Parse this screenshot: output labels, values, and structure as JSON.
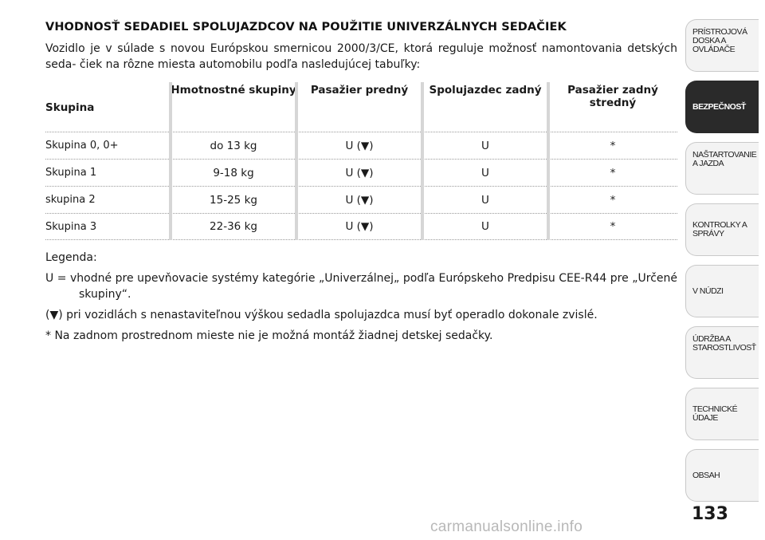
{
  "title": "VHODNOSŤ SEDADIEL SPOLUJAZDCOV NA POUŽITIE UNIVERZÁLNYCH SEDAČIEK",
  "intro": "Vozidlo je v súlade s novou Európskou smernicou 2000/3/CE, ktorá reguluje možnosť namontovania detských seda- čiek na rôzne miesta automobilu podľa nasledujúcej tabuľky:",
  "table": {
    "headers": [
      "Skupina",
      "Hmotnostné skupiny",
      "Pasažier predný",
      "Spolujazdec zadný",
      "Pasažier zadný stredný"
    ],
    "rows": [
      [
        "Skupina 0, 0+",
        "do 13 kg",
        "U (▼)",
        "U",
        "*"
      ],
      [
        "Skupina 1",
        "9-18 kg",
        "U (▼)",
        "U",
        "*"
      ],
      [
        "skupina 2",
        "15-25 kg",
        "U (▼)",
        "U",
        "*"
      ],
      [
        "Skupina 3",
        "22-36 kg",
        "U (▼)",
        "U",
        "*"
      ]
    ]
  },
  "legend": {
    "heading": "Legenda:",
    "u_def": "U = vhodné pre upevňovacie systémy kategórie „Univerzálnej„ podľa Európskeho Predpisu CEE-R44 pre „Určené skupiny“.",
    "triangle_def": "(▼) pri vozidlách s nenastaviteľnou výškou sedadla spolujazdca musí byť operadlo dokonale zvislé.",
    "star_def": "* Na zadnom prostrednom mieste nie je možná montáž žiadnej detskej sedačky."
  },
  "sidebar": {
    "tabs": [
      {
        "label": "PRÍSTROJOVÁ DOSKA A OVLÁDAČE",
        "active": false
      },
      {
        "label": "BEZPEČNOSŤ",
        "active": true
      },
      {
        "label": "NAŠTARTOVANIE A JAZDA",
        "active": false
      },
      {
        "label": "KONTROLKY A SPRÁVY",
        "active": false
      },
      {
        "label": "V NÚDZI",
        "active": false
      },
      {
        "label": "ÚDRŽBA A STAROSTLIVOSŤ",
        "active": false
      },
      {
        "label": "TECHNICKÉ ÚDAJE",
        "active": false
      },
      {
        "label": "OBSAH",
        "active": false
      }
    ]
  },
  "page_number": "133",
  "watermark": "carmanualsonline.info"
}
